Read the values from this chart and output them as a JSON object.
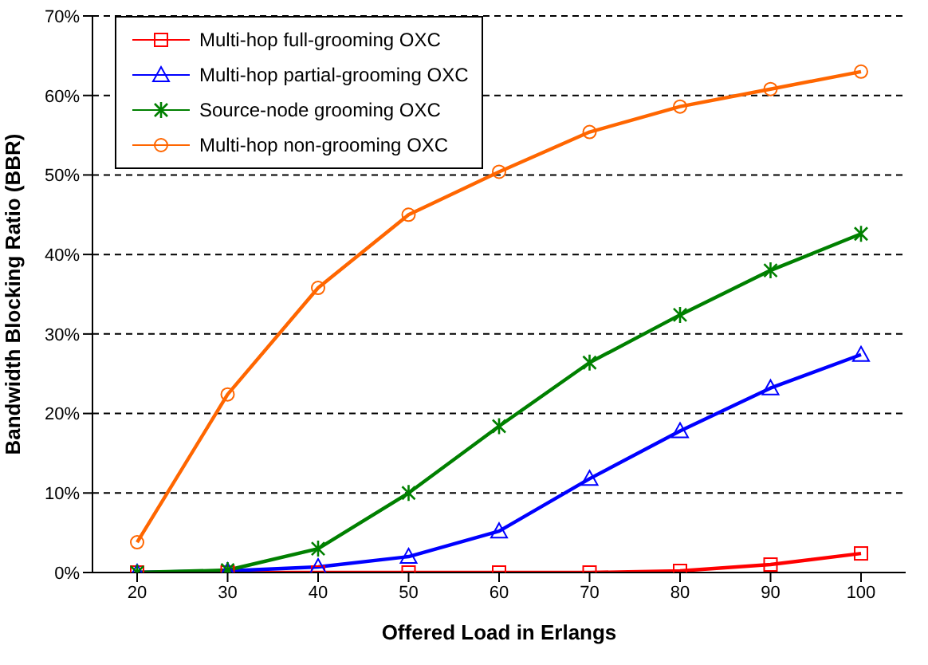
{
  "chart_data": {
    "type": "line",
    "xlabel": "Offered Load in Erlangs",
    "ylabel": "Bandwidth Blocking Ratio (BBR)",
    "categories": [
      "20",
      "30",
      "40",
      "50",
      "60",
      "70",
      "80",
      "90",
      "100"
    ],
    "series": [
      {
        "name": "Multi-hop full-grooming OXC",
        "color": "#ff0000",
        "marker": "square",
        "values": [
          0,
          0,
          0,
          0,
          0,
          0,
          0.2,
          1,
          2.4
        ]
      },
      {
        "name": "Multi-hop partial-grooming OXC",
        "color": "#0000ff",
        "marker": "triangle",
        "values": [
          0,
          0.2,
          0.7,
          2,
          5.2,
          11.8,
          17.8,
          23.2,
          27.4
        ]
      },
      {
        "name": "Source-node grooming OXC",
        "color": "#008000",
        "marker": "cross",
        "values": [
          0,
          0.3,
          3,
          10,
          18.4,
          26.4,
          32.4,
          38,
          42.6
        ]
      },
      {
        "name": "Multi-hop non-grooming OXC",
        "color": "#ff6600",
        "marker": "circle",
        "values": [
          3.8,
          22.4,
          35.8,
          45,
          50.4,
          55.4,
          58.6,
          60.8,
          63
        ]
      }
    ],
    "ylim": [
      0,
      70
    ],
    "yticks": [
      {
        "value": 0,
        "label": "0%"
      },
      {
        "value": 10,
        "label": "10%"
      },
      {
        "value": 20,
        "label": "20%"
      },
      {
        "value": 30,
        "label": "30%"
      },
      {
        "value": 40,
        "label": "40%"
      },
      {
        "value": 50,
        "label": "50%"
      },
      {
        "value": 60,
        "label": "60%"
      },
      {
        "value": 70,
        "label": "70%"
      }
    ],
    "grid": "y",
    "legend": "top left",
    "line_style": "solid"
  }
}
